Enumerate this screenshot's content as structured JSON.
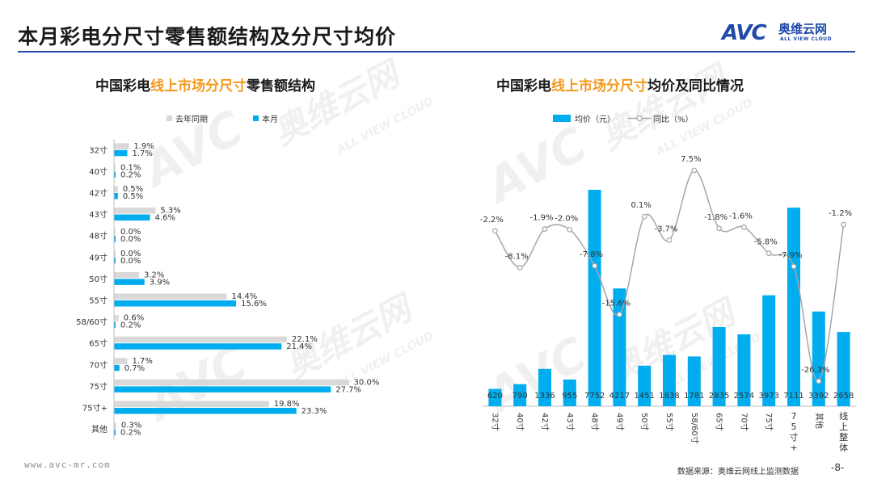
{
  "page": {
    "title": "本月彩电分尺寸零售额结构及分尺寸均价",
    "url": "www.avc-mr.com",
    "source": "数据来源：奥维云网线上监测数据",
    "page_number": "-8-"
  },
  "logo": {
    "mark": "AVC",
    "cn": "奥维云网",
    "en": "ALL VIEW CLOUD"
  },
  "watermark": {
    "mark": "AVC",
    "cn": "奥维云网",
    "en": "ALL VIEW CLOUD"
  },
  "colors": {
    "current": "#00adef",
    "last_year": "#d9d9d9",
    "yoy_line": "#a6a6a6",
    "accent": "#f39a1e",
    "brand": "#1f4aa8"
  },
  "left_title": {
    "pre": "中国彩电",
    "hl": "线上市场分尺寸",
    "post": "零售额结构"
  },
  "right_title": {
    "pre": "中国彩电",
    "hl": "线上市场分尺寸",
    "post": "均价及同比情况"
  },
  "chart_data": [
    {
      "type": "bar",
      "orientation": "horizontal",
      "categories": [
        "32寸",
        "40寸",
        "42寸",
        "43寸",
        "48寸",
        "49寸",
        "50寸",
        "55寸",
        "58/60寸",
        "65寸",
        "70寸",
        "75寸",
        "75寸+",
        "其他"
      ],
      "series": [
        {
          "name": "去年同期",
          "values": [
            1.9,
            0.1,
            0.5,
            5.3,
            0.0,
            0.0,
            3.2,
            14.4,
            0.6,
            22.1,
            1.7,
            30.0,
            19.8,
            0.3
          ],
          "labels": [
            "1.9%",
            "0.1%",
            "0.5%",
            "5.3%",
            "0.0%",
            "0.0%",
            "3.2%",
            "14.4%",
            "0.6%",
            "22.1%",
            "1.7%",
            "30.0%",
            "19.8%",
            "0.3%"
          ]
        },
        {
          "name": "本月",
          "values": [
            1.7,
            0.2,
            0.5,
            4.6,
            0.0,
            0.0,
            3.9,
            15.6,
            0.2,
            21.4,
            0.7,
            27.7,
            23.3,
            0.2
          ],
          "labels": [
            "1.7%",
            "0.2%",
            "0.5%",
            "4.6%",
            "0.0%",
            "0.0%",
            "3.9%",
            "15.6%",
            "0.2%",
            "21.4%",
            "0.7%",
            "27.7%",
            "23.3%",
            "0.2%"
          ]
        }
      ],
      "unit": "%",
      "xlim": [
        0,
        35
      ],
      "legend": "top-left",
      "grid": false
    },
    {
      "type": "bar",
      "categories": [
        "32寸",
        "40寸",
        "42寸",
        "43寸",
        "48寸",
        "49寸",
        "50寸",
        "55寸",
        "58/60寸",
        "65寸",
        "70寸",
        "75寸",
        "75寸+",
        "其他",
        "线上整体"
      ],
      "series": [
        {
          "name": "均价（元）",
          "type": "bar",
          "values": [
            620,
            790,
            1336,
            955,
            7752,
            4217,
            1451,
            1838,
            1781,
            2835,
            2574,
            3973,
            7111,
            3392,
            2658
          ],
          "labels": [
            "620",
            "790",
            "1336",
            "955",
            "7752",
            "4217",
            "1451",
            "1838",
            "1781",
            "2835",
            "2574",
            "3973",
            "7111",
            "3392",
            "2658"
          ]
        },
        {
          "name": "同比（%）",
          "type": "line",
          "values": [
            -2.2,
            -8.1,
            -1.9,
            -2.0,
            -7.8,
            -15.6,
            0.1,
            -3.7,
            7.5,
            -1.8,
            -1.6,
            -5.8,
            -7.9,
            -26.3,
            -1.2
          ],
          "labels": [
            "-2.2%",
            "-8.1%",
            "-1.9%",
            "-2.0%",
            "-7.8%",
            "-15.6%",
            "0.1%",
            "-3.7%",
            "7.5%",
            "-1.8%",
            "-1.6%",
            "-5.8%",
            "-7.9%",
            "-26.3%",
            "-1.2%"
          ]
        }
      ],
      "ylim": [
        0,
        8500
      ],
      "y2lim": [
        -30,
        10
      ],
      "legend": "top-center",
      "grid": false
    }
  ]
}
